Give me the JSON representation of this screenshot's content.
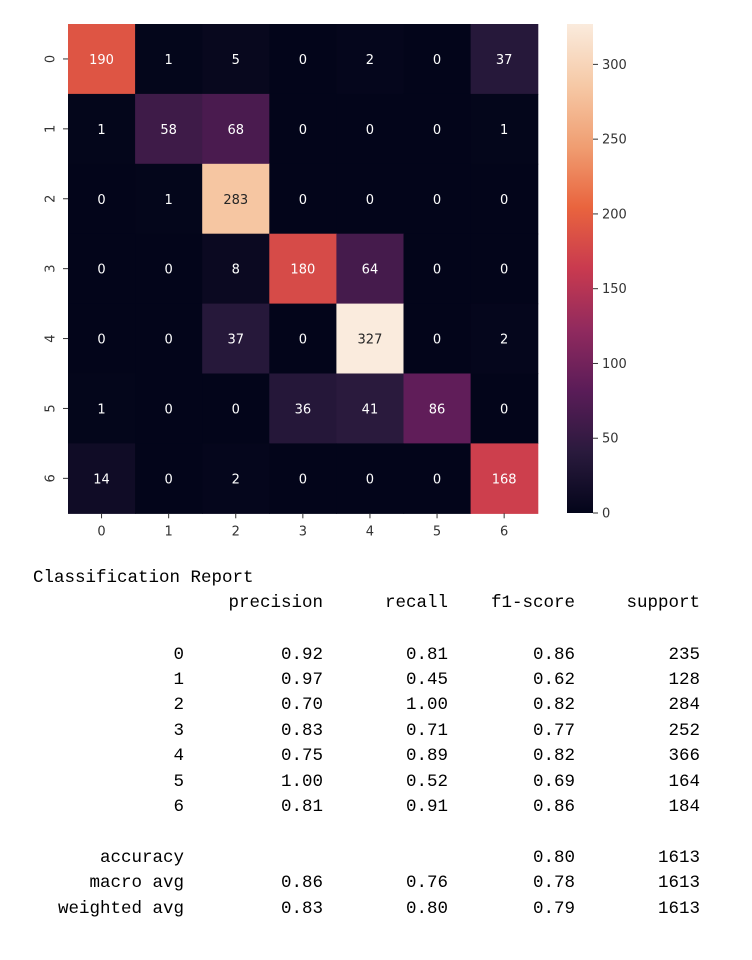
{
  "chart_data": {
    "type": "heatmap",
    "title": "",
    "xlabel": "",
    "ylabel": "",
    "x_tick_labels": [
      "0",
      "1",
      "2",
      "3",
      "4",
      "5",
      "6"
    ],
    "y_tick_labels": [
      "0",
      "1",
      "2",
      "3",
      "4",
      "5",
      "6"
    ],
    "matrix": [
      [
        190,
        1,
        5,
        0,
        2,
        0,
        37
      ],
      [
        1,
        58,
        68,
        0,
        0,
        0,
        1
      ],
      [
        0,
        1,
        283,
        0,
        0,
        0,
        0
      ],
      [
        0,
        0,
        8,
        180,
        64,
        0,
        0
      ],
      [
        0,
        0,
        37,
        0,
        327,
        0,
        2
      ],
      [
        1,
        0,
        0,
        36,
        41,
        86,
        0
      ],
      [
        14,
        0,
        2,
        0,
        0,
        0,
        168
      ]
    ],
    "colorbar": {
      "min": 0,
      "max": 327,
      "ticks": [
        0,
        50,
        100,
        150,
        200,
        250,
        300
      ],
      "colormap": "rocket",
      "stops": [
        "#03051a",
        "#2a1a3d",
        "#5a1c58",
        "#912a5e",
        "#c93a4f",
        "#e9643e",
        "#f09e72",
        "#f6c9a6",
        "#faebdd"
      ]
    },
    "annotation_colors": {
      "on_dark": "#ffffff",
      "on_light": "#262626"
    }
  },
  "report": {
    "title": "Classification Report",
    "header": [
      "precision",
      "recall",
      "f1-score",
      "support"
    ],
    "rows": [
      {
        "label": "0",
        "precision": "0.92",
        "recall": "0.81",
        "f1": "0.86",
        "support": "235"
      },
      {
        "label": "1",
        "precision": "0.97",
        "recall": "0.45",
        "f1": "0.62",
        "support": "128"
      },
      {
        "label": "2",
        "precision": "0.70",
        "recall": "1.00",
        "f1": "0.82",
        "support": "284"
      },
      {
        "label": "3",
        "precision": "0.83",
        "recall": "0.71",
        "f1": "0.77",
        "support": "252"
      },
      {
        "label": "4",
        "precision": "0.75",
        "recall": "0.89",
        "f1": "0.82",
        "support": "366"
      },
      {
        "label": "5",
        "precision": "1.00",
        "recall": "0.52",
        "f1": "0.69",
        "support": "164"
      },
      {
        "label": "6",
        "precision": "0.81",
        "recall": "0.91",
        "f1": "0.86",
        "support": "184"
      }
    ],
    "summary": [
      {
        "label": "accuracy",
        "precision": "",
        "recall": "",
        "f1": "0.80",
        "support": "1613"
      },
      {
        "label": "macro avg",
        "precision": "0.86",
        "recall": "0.76",
        "f1": "0.78",
        "support": "1613"
      },
      {
        "label": "weighted avg",
        "precision": "0.83",
        "recall": "0.80",
        "f1": "0.79",
        "support": "1613"
      }
    ]
  }
}
